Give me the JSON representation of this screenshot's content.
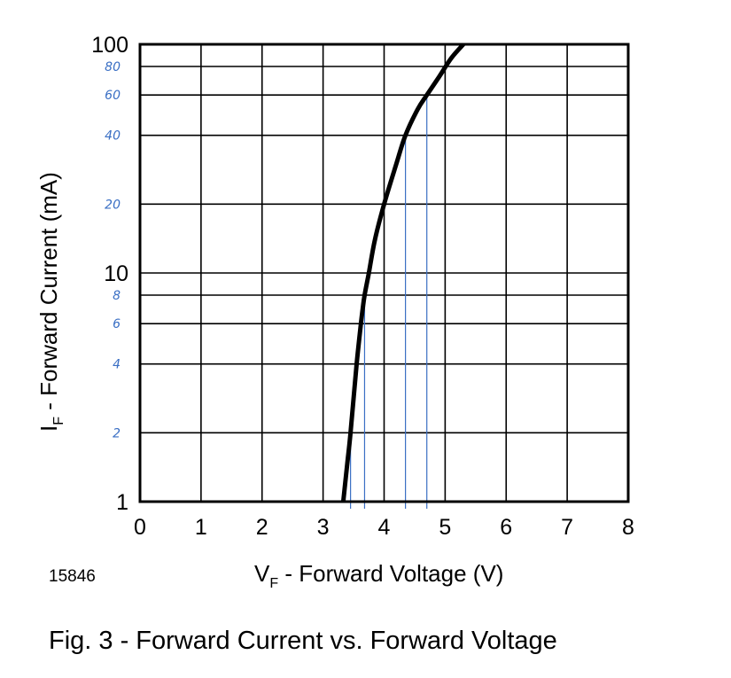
{
  "chart_data": {
    "type": "line",
    "figure_id": "15846",
    "caption": "Fig. 3 - Forward Current vs. Forward Voltage",
    "xlabel": {
      "main": "V",
      "sub": "F",
      "rest": " - Forward Voltage (V)"
    },
    "ylabel": {
      "main": "I",
      "sub": "F",
      "rest": " - Forward Current (mA)"
    },
    "xlim": [
      0,
      8
    ],
    "ylim": [
      1,
      100
    ],
    "yscale": "log",
    "grid": true,
    "x_ticks": [
      "0",
      "1",
      "2",
      "3",
      "4",
      "5",
      "6",
      "7",
      "8"
    ],
    "y_tick_labels": [
      {
        "value": 1,
        "text": "1"
      },
      {
        "value": 10,
        "text": "10"
      },
      {
        "value": 100,
        "text": "100"
      }
    ],
    "y_grid_values": [
      1,
      2,
      4,
      6,
      8,
      10,
      20,
      40,
      60,
      80,
      100
    ],
    "series": [
      {
        "color": "#000000",
        "points": [
          {
            "x": 3.33,
            "y": 1
          },
          {
            "x": 3.4,
            "y": 1.5
          },
          {
            "x": 3.45,
            "y": 2
          },
          {
            "x": 3.55,
            "y": 4
          },
          {
            "x": 3.62,
            "y": 6
          },
          {
            "x": 3.65,
            "y": 7
          },
          {
            "x": 3.68,
            "y": 8
          },
          {
            "x": 3.75,
            "y": 10
          },
          {
            "x": 3.85,
            "y": 14
          },
          {
            "x": 4.0,
            "y": 20
          },
          {
            "x": 4.2,
            "y": 30
          },
          {
            "x": 4.35,
            "y": 40
          },
          {
            "x": 4.55,
            "y": 52
          },
          {
            "x": 4.7,
            "y": 60
          },
          {
            "x": 4.9,
            "y": 72
          },
          {
            "x": 5.1,
            "y": 87
          },
          {
            "x": 5.3,
            "y": 100
          }
        ]
      }
    ],
    "annotations": {
      "color": "#3a6fc4",
      "handwritten_y_labels": [
        {
          "value": 80,
          "text": "80"
        },
        {
          "value": 60,
          "text": "60"
        },
        {
          "value": 40,
          "text": "40"
        },
        {
          "value": 20,
          "text": "20"
        },
        {
          "value": 8,
          "text": "8"
        },
        {
          "value": 6,
          "text": "6"
        },
        {
          "value": 4,
          "text": "4"
        },
        {
          "value": 2,
          "text": "2"
        }
      ],
      "vertical_lines": [
        {
          "x": 3.45,
          "y_top": 2
        },
        {
          "x": 3.68,
          "y_top": 8
        },
        {
          "x": 4.35,
          "y_top": 40
        },
        {
          "x": 4.7,
          "y_top": 60
        }
      ]
    }
  }
}
